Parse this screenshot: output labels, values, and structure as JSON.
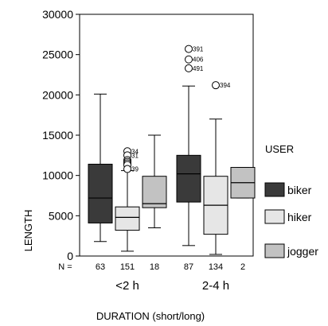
{
  "chart_data": {
    "type": "boxplot",
    "xlabel": "DURATION (short/long)",
    "ylabel": "LENGTH",
    "ylim": [
      0,
      30000
    ],
    "yticks": [
      0,
      5000,
      10000,
      15000,
      20000,
      25000,
      30000
    ],
    "categories": [
      "<2 h",
      "2-4 h"
    ],
    "n_prefix": "N =",
    "legend": {
      "title": "USER",
      "placement": "right"
    },
    "series": [
      {
        "name": "biker",
        "color": "#3a3a3a"
      },
      {
        "name": "hiker",
        "color": "#e6e6e6"
      },
      {
        "name": "jogger",
        "color": "#c2c2c2"
      }
    ],
    "boxes": [
      {
        "category": "<2 h",
        "series": "biker",
        "n": "63",
        "whisker_low": 1800,
        "q1": 4100,
        "median": 7200,
        "q3": 11400,
        "whisker_high": 20100,
        "outliers": []
      },
      {
        "category": "<2 h",
        "series": "hiker",
        "n": "151",
        "whisker_low": 600,
        "q1": 3200,
        "median": 4800,
        "q3": 6100,
        "whisker_high": 10600,
        "outliers": [
          {
            "value": 13000,
            "label": "34"
          },
          {
            "value": 12500,
            "label": "31"
          },
          {
            "value": 11900,
            "label": ""
          },
          {
            "value": 11700,
            "label": ""
          },
          {
            "value": 11500,
            "label": ""
          },
          {
            "value": 11300,
            "label": ""
          },
          {
            "value": 10800,
            "label": "39"
          }
        ]
      },
      {
        "category": "<2 h",
        "series": "jogger",
        "n": "18",
        "whisker_low": 3500,
        "q1": 6000,
        "median": 6500,
        "q3": 9900,
        "whisker_high": 15000,
        "outliers": []
      },
      {
        "category": "2-4 h",
        "series": "biker",
        "n": "87",
        "whisker_low": 1300,
        "q1": 6700,
        "median": 10200,
        "q3": 12500,
        "whisker_high": 21100,
        "outliers": [
          {
            "value": 25700,
            "label": "391"
          },
          {
            "value": 24400,
            "label": "406"
          },
          {
            "value": 23300,
            "label": "491"
          }
        ]
      },
      {
        "category": "2-4 h",
        "series": "hiker",
        "n": "134",
        "whisker_low": 200,
        "q1": 2700,
        "median": 6300,
        "q3": 9900,
        "whisker_high": 17000,
        "outliers": [
          {
            "value": 21200,
            "label": "394"
          }
        ]
      },
      {
        "category": "2-4 h",
        "series": "jogger",
        "n": "2",
        "whisker_low": 7200,
        "q1": 7200,
        "median": 9100,
        "q3": 11000,
        "whisker_high": 11000,
        "outliers": []
      }
    ]
  }
}
